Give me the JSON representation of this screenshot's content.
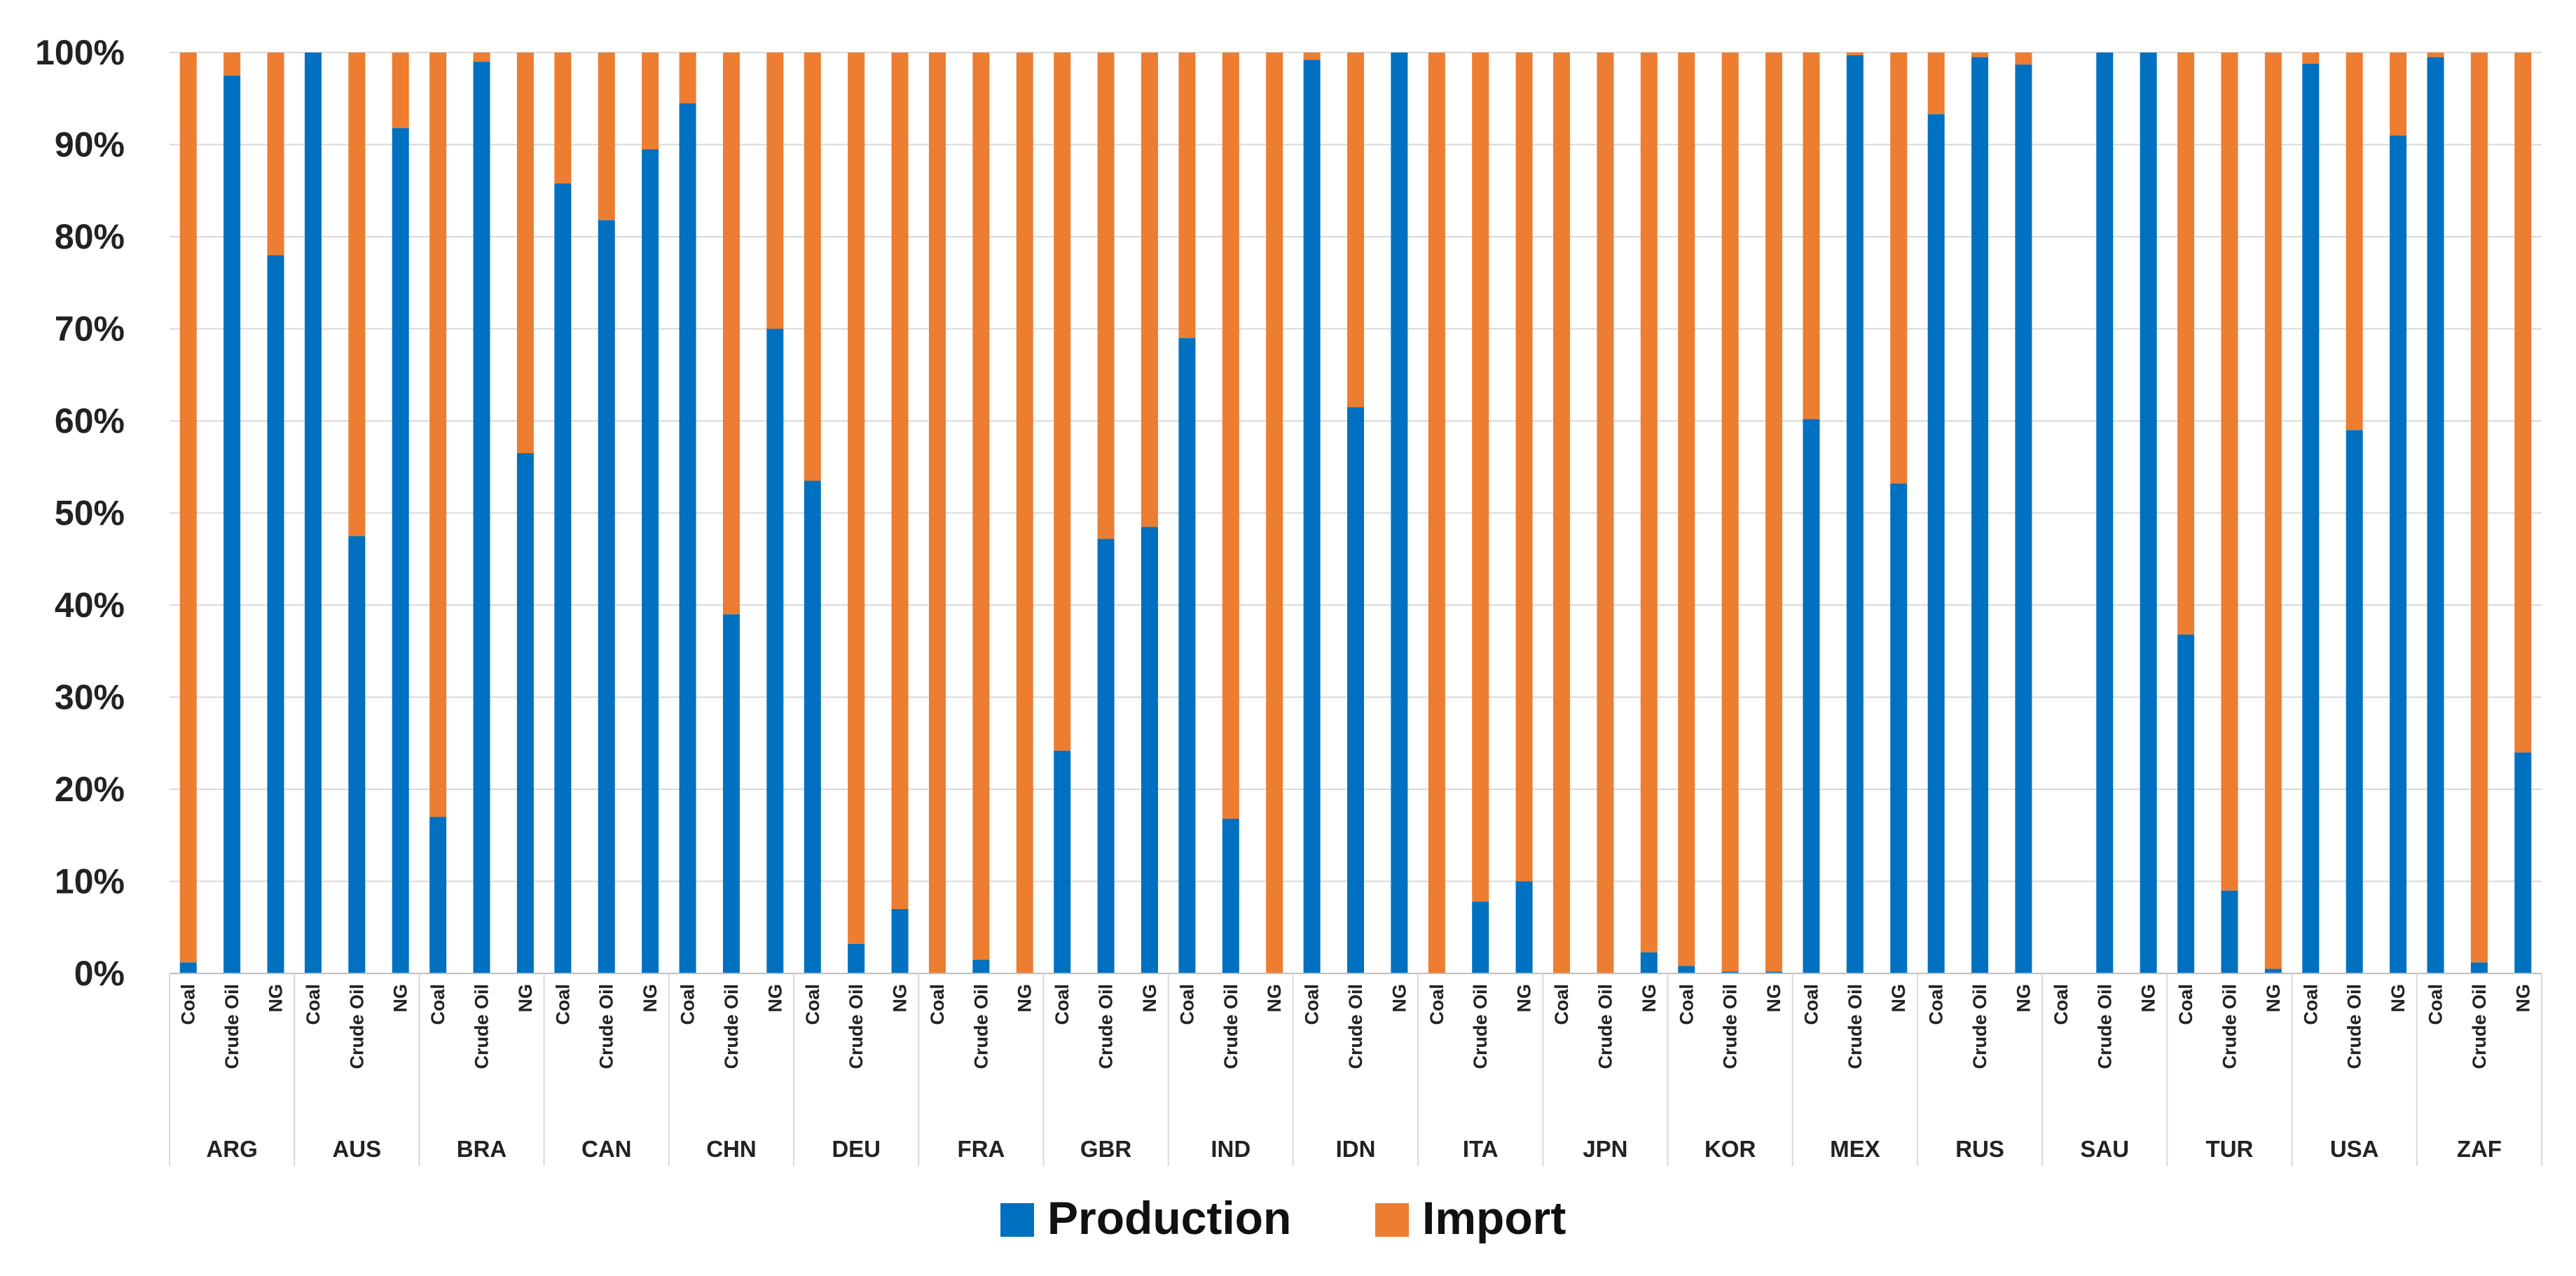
{
  "chart_data": {
    "type": "bar",
    "stacked": true,
    "percent": true,
    "title": "",
    "xlabel": "",
    "ylabel": "",
    "ylim": [
      0,
      100
    ],
    "yticks": [
      "0%",
      "10%",
      "20%",
      "30%",
      "40%",
      "50%",
      "60%",
      "70%",
      "80%",
      "90%",
      "100%"
    ],
    "colors": {
      "Production": "#0070C0",
      "Import": "#ED7D31"
    },
    "legend": {
      "position": "bottom",
      "entries": [
        "Production",
        "Import"
      ]
    },
    "groups": [
      {
        "country": "ARG",
        "items": [
          {
            "fuel": "Coal",
            "production": 1.2
          },
          {
            "fuel": "Crude Oil",
            "production": 97.5
          },
          {
            "fuel": "NG",
            "production": 78
          }
        ]
      },
      {
        "country": "AUS",
        "items": [
          {
            "fuel": "Coal",
            "production": 100
          },
          {
            "fuel": "Crude Oil",
            "production": 47.5
          },
          {
            "fuel": "NG",
            "production": 91.8
          }
        ]
      },
      {
        "country": "BRA",
        "items": [
          {
            "fuel": "Coal",
            "production": 17
          },
          {
            "fuel": "Crude Oil",
            "production": 99
          },
          {
            "fuel": "NG",
            "production": 56.5
          }
        ]
      },
      {
        "country": "CAN",
        "items": [
          {
            "fuel": "Coal",
            "production": 85.8
          },
          {
            "fuel": "Crude Oil",
            "production": 81.8
          },
          {
            "fuel": "NG",
            "production": 89.5
          }
        ]
      },
      {
        "country": "CHN",
        "items": [
          {
            "fuel": "Coal",
            "production": 94.5
          },
          {
            "fuel": "Crude Oil",
            "production": 39
          },
          {
            "fuel": "NG",
            "production": 70
          }
        ]
      },
      {
        "country": "DEU",
        "items": [
          {
            "fuel": "Coal",
            "production": 53.5
          },
          {
            "fuel": "Crude Oil",
            "production": 3.2
          },
          {
            "fuel": "NG",
            "production": 7
          }
        ]
      },
      {
        "country": "FRA",
        "items": [
          {
            "fuel": "Coal",
            "production": 0
          },
          {
            "fuel": "Crude Oil",
            "production": 1.5
          },
          {
            "fuel": "NG",
            "production": 0
          }
        ]
      },
      {
        "country": "GBR",
        "items": [
          {
            "fuel": "Coal",
            "production": 24.2
          },
          {
            "fuel": "Crude Oil",
            "production": 47.2
          },
          {
            "fuel": "NG",
            "production": 48.5
          }
        ]
      },
      {
        "country": "IND",
        "items": [
          {
            "fuel": "Coal",
            "production": 69
          },
          {
            "fuel": "Crude Oil",
            "production": 16.8
          },
          {
            "fuel": "NG",
            "production": 0
          }
        ]
      },
      {
        "country": "IDN",
        "items": [
          {
            "fuel": "Coal",
            "production": 99.2
          },
          {
            "fuel": "Crude Oil",
            "production": 61.5
          },
          {
            "fuel": "NG",
            "production": 100
          }
        ]
      },
      {
        "country": "ITA",
        "items": [
          {
            "fuel": "Coal",
            "production": 0
          },
          {
            "fuel": "Crude Oil",
            "production": 7.8
          },
          {
            "fuel": "NG",
            "production": 10
          }
        ]
      },
      {
        "country": "JPN",
        "items": [
          {
            "fuel": "Coal",
            "production": 0
          },
          {
            "fuel": "Crude Oil",
            "production": 0
          },
          {
            "fuel": "NG",
            "production": 2.3
          }
        ]
      },
      {
        "country": "KOR",
        "items": [
          {
            "fuel": "Coal",
            "production": 0.8
          },
          {
            "fuel": "Crude Oil",
            "production": 0.2
          },
          {
            "fuel": "NG",
            "production": 0.2
          }
        ]
      },
      {
        "country": "MEX",
        "items": [
          {
            "fuel": "Coal",
            "production": 60.2
          },
          {
            "fuel": "Crude Oil",
            "production": 99.7
          },
          {
            "fuel": "NG",
            "production": 53.2
          }
        ]
      },
      {
        "country": "RUS",
        "items": [
          {
            "fuel": "Coal",
            "production": 93.3
          },
          {
            "fuel": "Crude Oil",
            "production": 99.5
          },
          {
            "fuel": "NG",
            "production": 98.7
          }
        ]
      },
      {
        "country": "SAU",
        "items": [
          {
            "fuel": "Coal",
            "production": 0,
            "import": 0
          },
          {
            "fuel": "Crude Oil",
            "production": 100
          },
          {
            "fuel": "NG",
            "production": 100
          }
        ]
      },
      {
        "country": "TUR",
        "items": [
          {
            "fuel": "Coal",
            "production": 36.8
          },
          {
            "fuel": "Crude Oil",
            "production": 9
          },
          {
            "fuel": "NG",
            "production": 0.5
          }
        ]
      },
      {
        "country": "USA",
        "items": [
          {
            "fuel": "Coal",
            "production": 98.8
          },
          {
            "fuel": "Crude Oil",
            "production": 59
          },
          {
            "fuel": "NG",
            "production": 91
          }
        ]
      },
      {
        "country": "ZAF",
        "items": [
          {
            "fuel": "Coal",
            "production": 99.5
          },
          {
            "fuel": "Crude Oil",
            "production": 1.2
          },
          {
            "fuel": "NG",
            "production": 24
          }
        ]
      }
    ]
  }
}
